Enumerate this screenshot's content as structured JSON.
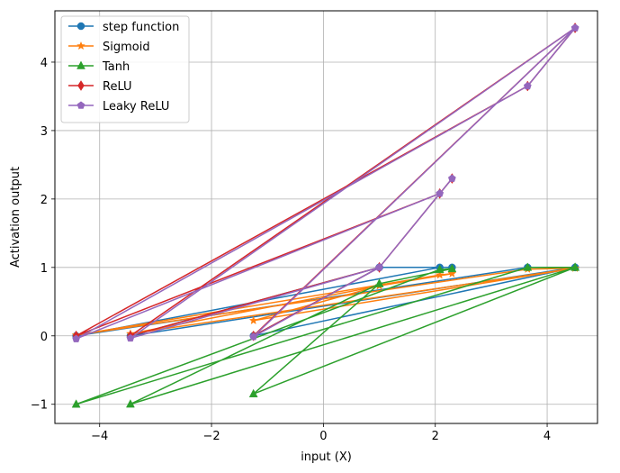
{
  "chart_data": {
    "type": "line",
    "xlabel": "input (X)",
    "ylabel": "Activation output",
    "xlim": [
      -4.8,
      4.9
    ],
    "ylim": [
      -1.28,
      4.75
    ],
    "xticks": [
      -4,
      -2,
      0,
      2,
      4
    ],
    "yticks": [
      -1,
      0,
      1,
      2,
      3,
      4
    ],
    "grid": true,
    "legend_position": "top-left",
    "x": [
      4.5,
      -1.25,
      1.0,
      2.3,
      2.08,
      -4.42,
      3.65,
      4.5,
      -3.45,
      1.0
    ],
    "series": [
      {
        "name": "step function",
        "color": "#1f77b4",
        "marker": "circle",
        "values": [
          1,
          0,
          1,
          1,
          1,
          0,
          1,
          1,
          0,
          1
        ]
      },
      {
        "name": "Sigmoid",
        "color": "#ff7f0e",
        "marker": "star",
        "values": [
          0.989,
          0.223,
          0.731,
          0.909,
          0.889,
          0.012,
          0.975,
          0.989,
          0.031,
          0.731
        ]
      },
      {
        "name": "Tanh",
        "color": "#2ca02c",
        "marker": "triangle",
        "values": [
          1.0,
          -0.848,
          0.762,
          0.98,
          0.969,
          -1.0,
          0.999,
          1.0,
          -0.998,
          0.762
        ]
      },
      {
        "name": "ReLU",
        "color": "#d62728",
        "marker": "diamond",
        "values": [
          4.5,
          0,
          1.0,
          2.3,
          2.08,
          0,
          3.65,
          4.5,
          0,
          1.0
        ]
      },
      {
        "name": "Leaky ReLU",
        "color": "#9467bd",
        "marker": "pentagon",
        "values": [
          4.5,
          -0.0125,
          1.0,
          2.3,
          2.08,
          -0.0442,
          3.65,
          4.5,
          -0.0345,
          1.0
        ]
      }
    ]
  }
}
